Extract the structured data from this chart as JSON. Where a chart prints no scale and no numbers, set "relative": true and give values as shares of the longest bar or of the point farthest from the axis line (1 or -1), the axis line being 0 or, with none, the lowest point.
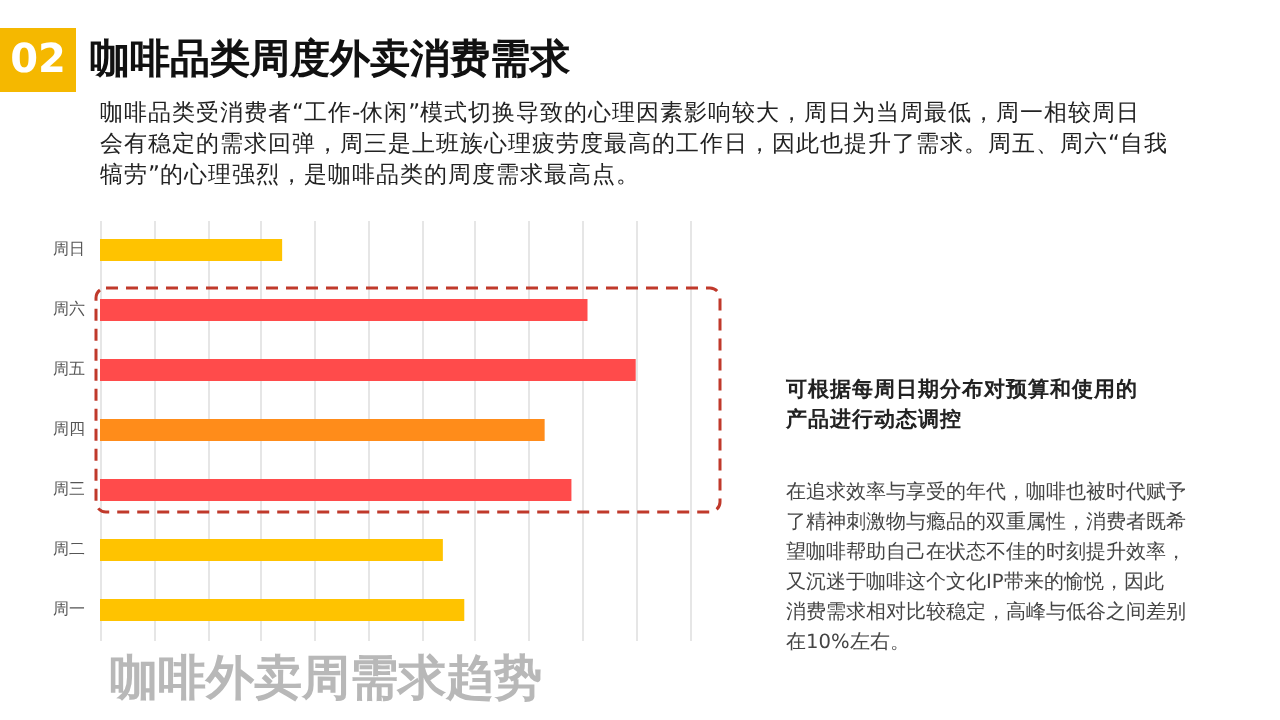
{
  "chart_data": {
    "type": "bar",
    "orientation": "horizontal",
    "relative": true,
    "title": "咖啡品类周度外卖消费需求",
    "subtitle": "咖啡品类受消费者“工作-休闲”模式切换导致的心理因素影响较大，周日为当周最低，周一相较周日会有稳定的需求回弹，周三是上班族心理疲劳度最高的工作日，因此也提升了需求。周五、周六“自我犒劳”的心理强烈，是咖啡品类的周度需求最高点。",
    "categories": [
      "周日",
      "周六",
      "周五",
      "周四",
      "周三",
      "周二",
      "周一"
    ],
    "values": [
      0.34,
      0.91,
      1.0,
      0.83,
      0.88,
      0.64,
      0.68
    ],
    "colors": [
      "#ffc300",
      "#ff4b4b",
      "#ff4b4b",
      "#ff8c1a",
      "#ff4b4b",
      "#ffc300",
      "#ffc300"
    ],
    "annotations": [
      "02",
      "可根据每周日期分布对预算和使用的产品进行动态调控",
      "在追求效率与享受的年代，咖啡也被时代赋予了精神刺激物与瘾品的双重属性，消费者既希望咖啡帮助自己在状态不佳的时刻提升效率，又沉迷于咖啡这个文化IP带来的愉悦，因此消费需求相对比较稳定，高峰与低谷之间差别在10%左右。",
      "咖啡外卖周需求趋势"
    ],
    "grid": "x",
    "tick_labels": "y"
  }
}
